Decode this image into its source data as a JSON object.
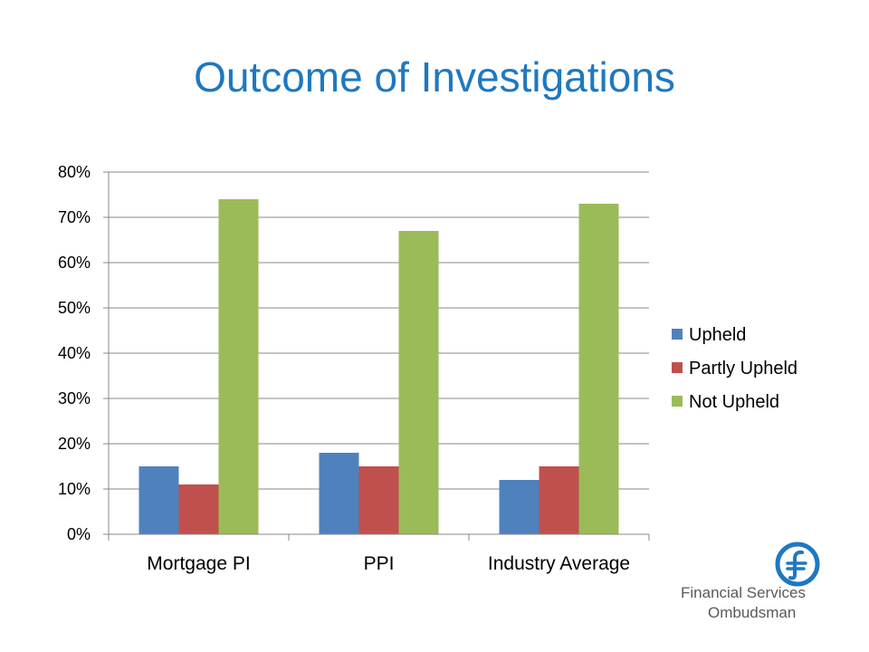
{
  "slide": {
    "title": "Outcome of Investigations"
  },
  "logo": {
    "line1": "Financial Services",
    "line2": "Ombudsman",
    "color": "#1f78c1"
  },
  "chart_data": {
    "type": "bar",
    "categories": [
      "Mortgage PI",
      "PPI",
      "Industry Average"
    ],
    "series": [
      {
        "name": "Upheld",
        "values": [
          15,
          18,
          12
        ],
        "color": "#4f81bd"
      },
      {
        "name": "Partly Upheld",
        "values": [
          11,
          15,
          15
        ],
        "color": "#c0504d"
      },
      {
        "name": "Not Upheld",
        "values": [
          74,
          67,
          73
        ],
        "color": "#9bbb59"
      }
    ],
    "ylim": [
      0,
      80
    ],
    "yticks": [
      0,
      10,
      20,
      30,
      40,
      50,
      60,
      70,
      80
    ],
    "ytick_suffix": "%",
    "grid": true,
    "legend": "right"
  }
}
